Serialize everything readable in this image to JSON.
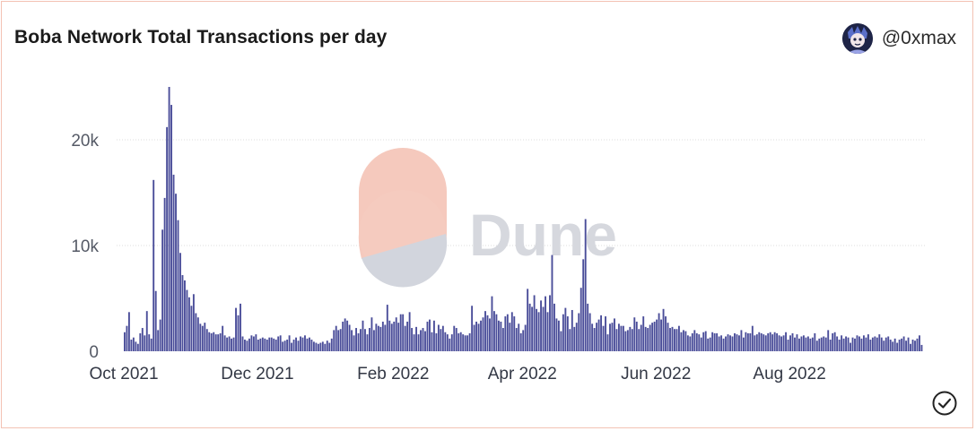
{
  "header": {
    "title": "Boba Network Total Transactions per day",
    "author": "@0xmax"
  },
  "watermark": {
    "text": "Dune"
  },
  "colors": {
    "bar": "#4a4d99",
    "grid": "#dddddd",
    "border": "#f3c2b3",
    "watermark_top": "#f5c9bd",
    "watermark_bottom": "#d3d6de",
    "watermark_text": "#d6d8de"
  },
  "chart_data": {
    "type": "bar",
    "title": "Boba Network Total Transactions per day",
    "xlabel": "",
    "ylabel": "",
    "x_start": "2021-10-01",
    "x_end": "2022-09-30",
    "ylim": [
      0,
      25500
    ],
    "yticks": [
      {
        "value": 0,
        "label": "0"
      },
      {
        "value": 10000,
        "label": "10k"
      },
      {
        "value": 20000,
        "label": "20k"
      }
    ],
    "xticks": [
      {
        "date": "2021-10-01",
        "label": "Oct 2021"
      },
      {
        "date": "2021-12-01",
        "label": "Dec 2021"
      },
      {
        "date": "2022-02-01",
        "label": "Feb 2022"
      },
      {
        "date": "2022-04-01",
        "label": "Apr 2022"
      },
      {
        "date": "2022-06-01",
        "label": "Jun 2022"
      },
      {
        "date": "2022-08-01",
        "label": "Aug 2022"
      }
    ],
    "grid": true,
    "values": [
      1800,
      2400,
      3700,
      1100,
      1300,
      900,
      700,
      1700,
      2200,
      1500,
      3800,
      1600,
      1200,
      16200,
      5700,
      2000,
      3000,
      11500,
      14500,
      21200,
      25000,
      23300,
      16700,
      14900,
      12400,
      9300,
      7200,
      6700,
      5800,
      5100,
      4300,
      5400,
      3600,
      3200,
      2600,
      2400,
      2700,
      2100,
      1800,
      1700,
      1800,
      1600,
      1600,
      1700,
      2400,
      1500,
      1300,
      1400,
      1200,
      1300,
      4100,
      3400,
      4500,
      1400,
      1100,
      1000,
      1200,
      1500,
      1400,
      1600,
      1100,
      1200,
      1300,
      1200,
      1100,
      1300,
      1300,
      1200,
      1100,
      1400,
      1500,
      900,
      1000,
      1100,
      1500,
      800,
      1100,
      1300,
      1000,
      1400,
      1300,
      1500,
      1200,
      1300,
      1100,
      900,
      800,
      700,
      800,
      900,
      700,
      1000,
      800,
      1200,
      2000,
      2400,
      2000,
      2100,
      2800,
      3100,
      2900,
      2500,
      2000,
      1500,
      2200,
      1700,
      2100,
      2900,
      2100,
      1600,
      2200,
      3200,
      2000,
      2600,
      2400,
      2300,
      2800,
      2500,
      4400,
      2900,
      2600,
      2800,
      3200,
      2700,
      3500,
      3500,
      2400,
      2800,
      3700,
      2200,
      1600,
      2300,
      1600,
      2000,
      2200,
      1900,
      2800,
      3000,
      1800,
      2900,
      1700,
      2500,
      2100,
      2400,
      1800,
      1600,
      1200,
      1600,
      2400,
      2200,
      1700,
      1800,
      1600,
      1500,
      1500,
      1700,
      4300,
      2500,
      2800,
      2600,
      2900,
      3200,
      3800,
      3400,
      3100,
      5200,
      3800,
      3500,
      2900,
      2800,
      2200,
      3300,
      3500,
      2700,
      3700,
      3300,
      2200,
      2600,
      1700,
      2000,
      2500,
      5900,
      4500,
      4200,
      5300,
      4000,
      3700,
      4800,
      4200,
      5200,
      3700,
      5300,
      9100,
      4500,
      3100,
      2900,
      1900,
      3500,
      4100,
      3300,
      2100,
      3900,
      2300,
      2700,
      3600,
      6000,
      8700,
      12500,
      4500,
      3600,
      2600,
      2200,
      2700,
      3000,
      3400,
      2400,
      3300,
      1600,
      2600,
      2700,
      3100,
      2100,
      2600,
      2400,
      2400,
      1900,
      2000,
      2300,
      2100,
      3200,
      2800,
      2100,
      2500,
      3300,
      2300,
      2200,
      2500,
      2700,
      2800,
      3000,
      3600,
      3000,
      4000,
      3300,
      2700,
      2200,
      2300,
      2100,
      2100,
      2400,
      1800,
      2000,
      1900,
      1500,
      1400,
      1700,
      2000,
      1700,
      1600,
      1300,
      1800,
      1900,
      1200,
      1300,
      1800,
      1700,
      1700,
      1400,
      1500,
      1200,
      1400,
      1600,
      1500,
      1400,
      1700,
      1600,
      1500,
      2000,
      1300,
      1800,
      1700,
      1700,
      2400,
      1500,
      1600,
      1800,
      1700,
      1600,
      1500,
      1700,
      1800,
      1600,
      1800,
      1700,
      1500,
      1400,
      1500,
      1800,
      1100,
      1500,
      1700,
      1300,
      1600,
      1200,
      1400,
      1500,
      1300,
      1400,
      1200,
      1300,
      1700,
      1000,
      1200,
      1300,
      1400,
      1300,
      2000,
      1100,
      1700,
      1800,
      1400,
      1100,
      1500,
      1200,
      1400,
      1300,
      800,
      1300,
      1200,
      1500,
      1400,
      1200,
      1500,
      1300,
      1600,
      1100,
      1300,
      1400,
      1300,
      1600,
      1300,
      1000,
      1300,
      1400,
      1100,
      900,
      1200,
      800,
      1100,
      1200,
      1400,
      1000,
      1300,
      700,
      1100,
      1000,
      1200,
      1500,
      600
    ]
  }
}
